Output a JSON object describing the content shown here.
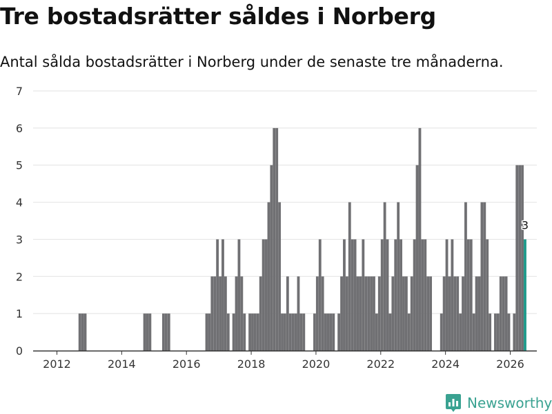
{
  "header": {
    "title": "Tre bostadsrätter såldes i Norberg",
    "subtitle": "Antal sålda bostadsrätter i Norberg under de senaste tre månaderna."
  },
  "brand": {
    "name": "Newsworthy",
    "icon": "newsworthy-logo-icon",
    "color": "#3aa291"
  },
  "colors": {
    "bar": "#707073",
    "highlight": "#1d9a8a",
    "grid": "#e2e2e2",
    "axis": "#333333"
  },
  "chart_data": {
    "type": "bar",
    "title": "Tre bostadsrätter såldes i Norberg",
    "subtitle": "Antal sålda bostadsrätter i Norberg under de senaste tre månaderna.",
    "xlabel": "",
    "ylabel": "",
    "ylim": [
      0,
      7
    ],
    "yticks": [
      0,
      1,
      2,
      3,
      4,
      5,
      6,
      7
    ],
    "xticks": [
      2012,
      2014,
      2016,
      2018,
      2020,
      2022,
      2024,
      2026
    ],
    "x_start": "2011-04",
    "x_step": "month",
    "grid": true,
    "legend": "none",
    "values": [
      0,
      0,
      0,
      0,
      0,
      0,
      0,
      0,
      0,
      0,
      0,
      0,
      0,
      0,
      0,
      0,
      0,
      1,
      1,
      1,
      0,
      0,
      0,
      0,
      0,
      0,
      0,
      0,
      0,
      0,
      0,
      0,
      0,
      0,
      0,
      0,
      0,
      0,
      0,
      0,
      0,
      1,
      1,
      1,
      0,
      0,
      0,
      0,
      1,
      1,
      1,
      0,
      0,
      0,
      0,
      0,
      0,
      0,
      0,
      0,
      0,
      0,
      0,
      0,
      1,
      1,
      2,
      2,
      3,
      2,
      3,
      2,
      1,
      0,
      1,
      2,
      3,
      2,
      1,
      0,
      1,
      1,
      1,
      1,
      2,
      3,
      3,
      4,
      5,
      6,
      6,
      4,
      1,
      1,
      2,
      1,
      1,
      1,
      2,
      1,
      1,
      0,
      0,
      0,
      1,
      2,
      3,
      2,
      1,
      1,
      1,
      1,
      0,
      1,
      2,
      3,
      2,
      4,
      3,
      3,
      2,
      2,
      3,
      2,
      2,
      2,
      2,
      1,
      2,
      3,
      4,
      3,
      1,
      2,
      3,
      4,
      3,
      2,
      2,
      1,
      2,
      3,
      5,
      6,
      3,
      3,
      2,
      2,
      0,
      0,
      0,
      1,
      2,
      3,
      2,
      3,
      2,
      2,
      1,
      2,
      4,
      3,
      3,
      1,
      2,
      2,
      4,
      4,
      3,
      1,
      0,
      1,
      1,
      2,
      2,
      2,
      1,
      0,
      1,
      5,
      5,
      5,
      3
    ],
    "highlight_index": 182,
    "highlight_label": "3"
  }
}
